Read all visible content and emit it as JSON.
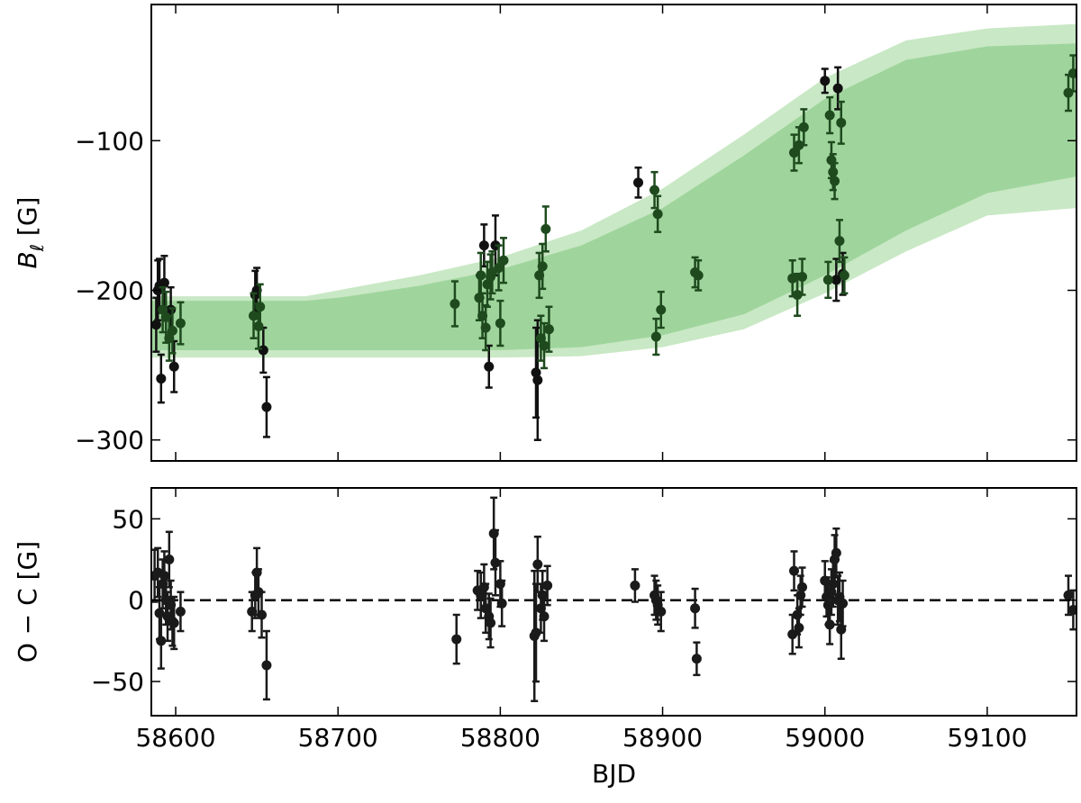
{
  "chart_data": [
    {
      "type": "errorbar",
      "ylabel": {
        "symbol": "B",
        "sub": "ℓ",
        "unit": " [G]"
      },
      "xlim": [
        58585,
        59155
      ],
      "xticks": [
        58600,
        58700,
        58800,
        58900,
        59000,
        59100
      ],
      "show_xtick_labels": false,
      "ylim": [
        -314,
        -9
      ],
      "yticks": [
        -300,
        -200,
        -100
      ],
      "bands": [
        {
          "color": "#c9e8c5",
          "x": [
            58585,
            58680,
            58700,
            58750,
            58800,
            58850,
            58900,
            58950,
            59000,
            59050,
            59100,
            59155
          ],
          "upper": [
            -204,
            -204,
            -200,
            -190,
            -178,
            -160,
            -132,
            -96,
            -58,
            -33,
            -25,
            -22
          ],
          "lower": [
            -245,
            -245,
            -245,
            -245,
            -245,
            -244,
            -238,
            -226,
            -202,
            -174,
            -150,
            -145
          ]
        },
        {
          "color": "#9fd59c",
          "x": [
            58585,
            58680,
            58700,
            58750,
            58800,
            58850,
            58900,
            58950,
            59000,
            59050,
            59100,
            59155
          ],
          "upper": [
            -207,
            -207,
            -205,
            -197,
            -186,
            -170,
            -145,
            -110,
            -72,
            -46,
            -37,
            -35
          ],
          "lower": [
            -240,
            -240,
            -240,
            -240,
            -240,
            -238,
            -230,
            -216,
            -190,
            -160,
            -135,
            -124
          ]
        }
      ],
      "series": [
        {
          "color": "#111111",
          "x": [
            58588,
            58589,
            58590,
            58591,
            58593,
            58597,
            58599,
            58649,
            58650,
            58654,
            58656,
            58790,
            58793,
            58797,
            58822,
            58823,
            58885,
            59000,
            59007,
            59008,
            59011
          ],
          "values": [
            -223,
            -200,
            -197,
            -259,
            -195,
            -213,
            -251,
            -203,
            -200,
            -240,
            -278,
            -170,
            -251,
            -170,
            -255,
            -260,
            -128,
            -60,
            -193,
            -65,
            -189
          ],
          "errors": [
            18,
            20,
            18,
            16,
            18,
            15,
            17,
            16,
            15,
            15,
            20,
            14,
            14,
            20,
            30,
            40,
            10,
            8,
            14,
            14,
            14
          ]
        },
        {
          "color": "#1e4a1e",
          "x": [
            58592,
            58594,
            58596,
            58598,
            58603,
            58648,
            58651,
            58652,
            58772,
            58787,
            58788,
            58789,
            58791,
            58792,
            58794,
            58795,
            58799,
            58800,
            58802,
            58824,
            58825,
            58826,
            58827,
            58828,
            58830,
            58895,
            58896,
            58897,
            58899,
            58920,
            58922,
            58980,
            58981,
            58983,
            58984,
            58986,
            58987,
            59002,
            59003,
            59004,
            59005,
            59006,
            59009,
            59010,
            59012,
            59150,
            59153
          ],
          "values": [
            -213,
            -218,
            -232,
            -227,
            -222,
            -217,
            -224,
            -211,
            -209,
            -205,
            -190,
            -217,
            -225,
            -196,
            -191,
            -188,
            -185,
            -222,
            -180,
            -190,
            -232,
            -184,
            -237,
            -159,
            -226,
            -133,
            -231,
            -149,
            -213,
            -188,
            -190,
            -192,
            -108,
            -203,
            -103,
            -191,
            -91,
            -193,
            -83,
            -113,
            -121,
            -127,
            -167,
            -88,
            -190,
            -68,
            -55
          ],
          "errors": [
            15,
            17,
            15,
            15,
            14,
            15,
            15,
            15,
            15,
            15,
            15,
            15,
            15,
            15,
            15,
            14,
            15,
            15,
            15,
            15,
            15,
            15,
            15,
            15,
            15,
            12,
            12,
            12,
            12,
            10,
            10,
            12,
            12,
            14,
            12,
            12,
            12,
            12,
            12,
            12,
            12,
            12,
            14,
            14,
            12,
            12,
            12
          ]
        }
      ]
    },
    {
      "type": "errorbar",
      "ylabel": "O − C [G]",
      "xlabel": "BJD",
      "xlim": [
        58585,
        59155
      ],
      "xticks": [
        58600,
        58700,
        58800,
        58900,
        59000,
        59100
      ],
      "show_xtick_labels": true,
      "ylim": [
        -71,
        69
      ],
      "yticks": [
        -50,
        0,
        50
      ],
      "hline": {
        "value": 0,
        "color": "#000000",
        "dashed": true
      },
      "series": [
        {
          "color": "#1a1a1a",
          "x": [
            58587,
            58589,
            58590,
            58591,
            58592,
            58593,
            58594,
            58595,
            58596,
            58597,
            58598,
            58599,
            58603,
            58647,
            58649,
            58650,
            58651,
            58653,
            58656,
            58773,
            58786,
            58788,
            58790,
            58791,
            58793,
            58794,
            58796,
            58797,
            58800,
            58801,
            58821,
            58822,
            58823,
            58825,
            58826,
            58827,
            58829,
            58883,
            58895,
            58896,
            58897,
            58899,
            58920,
            58921,
            58980,
            58981,
            58983,
            58984,
            58985,
            58986,
            59000,
            59001,
            59002,
            59003,
            59004,
            59005,
            59006,
            59007,
            59008,
            59009,
            59010,
            59011,
            59150,
            59153
          ],
          "values": [
            15,
            17,
            -8,
            -25,
            10,
            15,
            0,
            -10,
            25,
            -3,
            -13,
            -14,
            -7,
            -7,
            3,
            17,
            5,
            -9,
            -40,
            -24,
            6,
            3,
            8,
            -5,
            -10,
            -14,
            41,
            23,
            10,
            -2,
            -22,
            -20,
            22,
            -5,
            3,
            -10,
            9,
            9,
            3,
            0,
            -3,
            -7,
            -5,
            -36,
            -21,
            18,
            -9,
            -17,
            3,
            8,
            12,
            2,
            -3,
            -15,
            5,
            10,
            25,
            29,
            0,
            2,
            -18,
            -2,
            3,
            -6
          ],
          "errors": [
            16,
            15,
            16,
            17,
            15,
            15,
            15,
            15,
            17,
            15,
            15,
            16,
            12,
            12,
            14,
            15,
            14,
            14,
            21,
            15,
            12,
            14,
            14,
            15,
            14,
            15,
            22,
            20,
            14,
            14,
            40,
            30,
            17,
            15,
            15,
            15,
            12,
            10,
            12,
            12,
            12,
            12,
            12,
            10,
            12,
            12,
            12,
            12,
            12,
            12,
            12,
            12,
            12,
            12,
            14,
            14,
            15,
            15,
            15,
            15,
            18,
            14,
            12,
            12
          ]
        }
      ]
    }
  ]
}
